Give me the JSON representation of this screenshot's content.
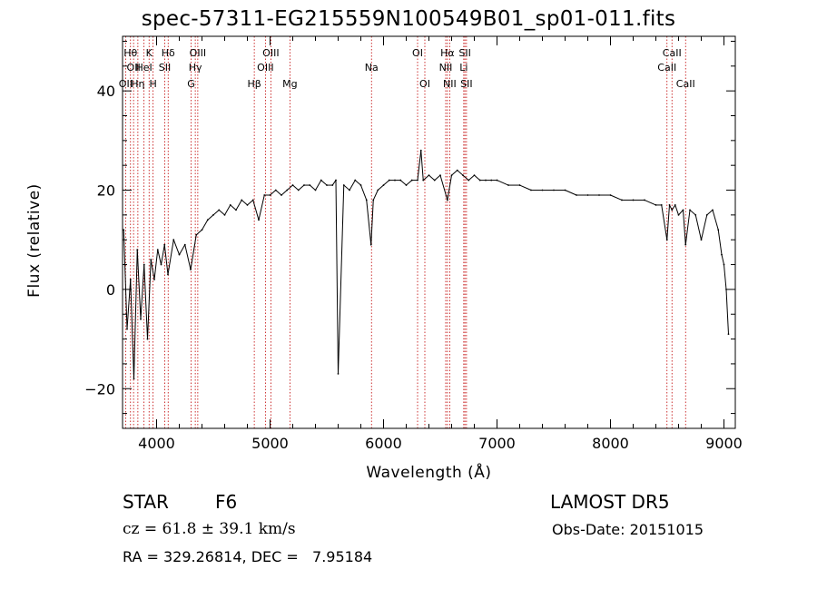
{
  "chart_data": {
    "type": "line",
    "title": "spec-57311-EG215559N100549B01_sp01-011.fits",
    "xlabel": "Wavelength (Å)",
    "ylabel": "Flux (relative)",
    "xlim": [
      3700,
      9100
    ],
    "ylim": [
      -28,
      51
    ],
    "xticks": [
      4000,
      5000,
      6000,
      7000,
      8000,
      9000
    ],
    "yticks": [
      -20,
      0,
      20,
      40
    ],
    "grid": false,
    "line_color": "#000000",
    "marker_color": "#c00000",
    "series": [
      {
        "x": [
          3710,
          3740,
          3770,
          3800,
          3830,
          3860,
          3890,
          3920,
          3950,
          3980,
          4010,
          4040,
          4070,
          4100,
          4150,
          4200,
          4250,
          4300,
          4350,
          4400,
          4450,
          4500,
          4550,
          4600,
          4650,
          4700,
          4750,
          4800,
          4850,
          4900,
          4950,
          5000,
          5050,
          5100,
          5150,
          5200,
          5250,
          5300,
          5350,
          5400,
          5450,
          5500,
          5550,
          5580,
          5600,
          5650,
          5700,
          5750,
          5800,
          5850,
          5890,
          5910,
          5950,
          6000,
          6050,
          6100,
          6150,
          6200,
          6250,
          6300,
          6330,
          6350,
          6400,
          6450,
          6500,
          6563,
          6600,
          6650,
          6700,
          6750,
          6800,
          6850,
          6900,
          6950,
          7000,
          7100,
          7200,
          7300,
          7400,
          7500,
          7600,
          7700,
          7800,
          7900,
          8000,
          8100,
          8200,
          8300,
          8400,
          8450,
          8498,
          8520,
          8542,
          8570,
          8600,
          8640,
          8662,
          8700,
          8750,
          8800,
          8850,
          8900,
          8950,
          8980,
          9000,
          9020,
          9040
        ],
        "y": [
          12,
          -8,
          2,
          -18,
          8,
          -6,
          5,
          -10,
          6,
          2,
          8,
          5,
          9,
          3,
          10,
          7,
          9,
          4,
          11,
          12,
          14,
          15,
          16,
          15,
          17,
          16,
          18,
          17,
          18,
          14,
          19,
          19,
          20,
          19,
          20,
          21,
          20,
          21,
          21,
          20,
          22,
          21,
          21,
          22,
          -17,
          21,
          20,
          22,
          21,
          18,
          9,
          18,
          20,
          21,
          22,
          22,
          22,
          21,
          22,
          22,
          28,
          22,
          23,
          22,
          23,
          18,
          23,
          24,
          23,
          22,
          23,
          22,
          22,
          22,
          22,
          21,
          21,
          20,
          20,
          20,
          20,
          19,
          19,
          19,
          19,
          18,
          18,
          18,
          17,
          17,
          10,
          17,
          16,
          17,
          15,
          16,
          9,
          16,
          15,
          10,
          15,
          16,
          12,
          7,
          5,
          0,
          -9
        ]
      }
    ],
    "lines": [
      {
        "x": 3727,
        "label": "OII",
        "row": 2
      },
      {
        "x": 3770,
        "label": "Hθ",
        "row": 0
      },
      {
        "x": 3797,
        "label": "OII",
        "row": 1
      },
      {
        "x": 3835,
        "label": "Hη",
        "row": 2
      },
      {
        "x": 3889,
        "label": "HeI",
        "row": 1
      },
      {
        "x": 3934,
        "label": "K",
        "row": 0
      },
      {
        "x": 3969,
        "label": "H",
        "row": 2
      },
      {
        "x": 4072,
        "label": "SII",
        "row": 1
      },
      {
        "x": 4102,
        "label": "Hδ",
        "row": 0
      },
      {
        "x": 4304,
        "label": "G",
        "row": 2
      },
      {
        "x": 4341,
        "label": "Hγ",
        "row": 1
      },
      {
        "x": 4363,
        "label": "OIII",
        "row": 0
      },
      {
        "x": 4861,
        "label": "Hβ",
        "row": 2
      },
      {
        "x": 4959,
        "label": "OIII",
        "row": 1
      },
      {
        "x": 5007,
        "label": "OIII",
        "row": 0
      },
      {
        "x": 5175,
        "label": "Mg",
        "row": 2
      },
      {
        "x": 5894,
        "label": "Na",
        "row": 1
      },
      {
        "x": 6300,
        "label": "OI",
        "row": 0
      },
      {
        "x": 6364,
        "label": "OI",
        "row": 2
      },
      {
        "x": 6548,
        "label": "NII",
        "row": 1
      },
      {
        "x": 6563,
        "label": "Hα",
        "row": 0
      },
      {
        "x": 6583,
        "label": "NII",
        "row": 2
      },
      {
        "x": 6707,
        "label": "Li",
        "row": 1
      },
      {
        "x": 6717,
        "label": "SII",
        "row": 0
      },
      {
        "x": 6731,
        "label": "SII",
        "row": 2
      },
      {
        "x": 8498,
        "label": "CaII",
        "row": 1
      },
      {
        "x": 8542,
        "label": "CaII",
        "row": 0
      },
      {
        "x": 8662,
        "label": "CaII",
        "row": 2
      }
    ]
  },
  "info": {
    "class": "STAR",
    "subclass": "F6",
    "survey": "LAMOST DR5",
    "redshift": "cz = 61.8 ± 39.1 km/s",
    "obs_date": "Obs-Date: 20151015",
    "coords": "RA = 329.26814, DEC =   7.95184"
  }
}
